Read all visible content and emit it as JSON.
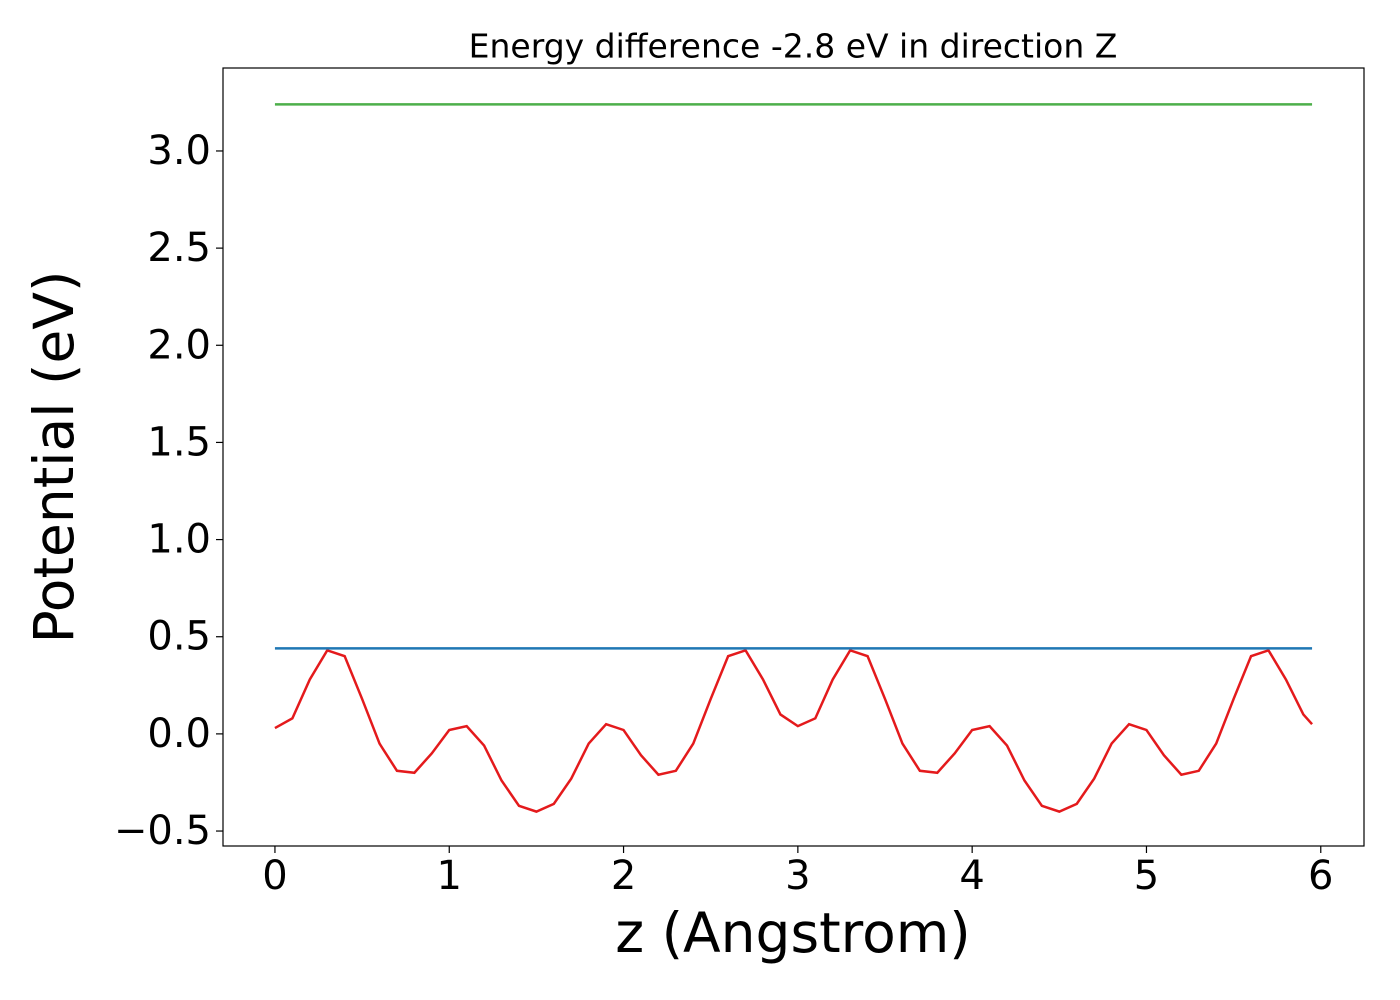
{
  "chart_data": {
    "type": "line",
    "title": "Energy difference -2.8 eV in direction Z",
    "xlabel": "z (Angstrom)",
    "ylabel": "Potential (eV)",
    "series": [
      {
        "color": "#e41a1c",
        "x": [
          0,
          0.1,
          0.2,
          0.3,
          0.4,
          0.5,
          0.6,
          0.7,
          0.8,
          0.9,
          1.0,
          1.1,
          1.2,
          1.3,
          1.4,
          1.5,
          1.6,
          1.7,
          1.8,
          1.9,
          2.0,
          2.1,
          2.2,
          2.3,
          2.4,
          2.5,
          2.6,
          2.7,
          2.8,
          2.9,
          3.0,
          3.1,
          3.2,
          3.3,
          3.4,
          3.5,
          3.6,
          3.7,
          3.8,
          3.9,
          4.0,
          4.1,
          4.2,
          4.3,
          4.4,
          4.5,
          4.6,
          4.7,
          4.8,
          4.9,
          5.0,
          5.1,
          5.2,
          5.3,
          5.4,
          5.5,
          5.6,
          5.7,
          5.8,
          5.9,
          5.95
        ],
        "values": [
          0.03,
          0.08,
          0.28,
          0.43,
          0.4,
          0.18,
          -0.05,
          -0.19,
          -0.2,
          -0.1,
          0.02,
          0.04,
          -0.06,
          -0.24,
          -0.37,
          -0.4,
          -0.36,
          -0.23,
          -0.05,
          0.05,
          0.02,
          -0.11,
          -0.21,
          -0.19,
          -0.05,
          0.18,
          0.4,
          0.43,
          0.28,
          0.1,
          0.04,
          0.08,
          0.28,
          0.43,
          0.4,
          0.18,
          -0.05,
          -0.19,
          -0.2,
          -0.1,
          0.02,
          0.04,
          -0.06,
          -0.24,
          -0.37,
          -0.4,
          -0.36,
          -0.23,
          -0.05,
          0.05,
          0.02,
          -0.11,
          -0.21,
          -0.19,
          -0.05,
          0.18,
          0.4,
          0.43,
          0.28,
          0.1,
          0.05
        ]
      },
      {
        "color": "#1f77b4",
        "x": [
          0,
          5.95
        ],
        "values": [
          0.44,
          0.44
        ]
      },
      {
        "color": "#4daf4a",
        "x": [
          0,
          5.95
        ],
        "values": [
          3.24,
          3.24
        ]
      }
    ],
    "xlim": [
      -0.298,
      6.248
    ],
    "ylim": [
      -0.577,
      3.427
    ],
    "xticks": [
      0,
      1,
      2,
      3,
      4,
      5,
      6
    ],
    "yticks": [
      {
        "value": -0.5,
        "label": "−0.5"
      },
      {
        "value": 0,
        "label": "0.0"
      },
      0.5,
      {
        "value": 1,
        "label": "1.0"
      },
      1.5,
      {
        "value": 2,
        "label": "2.0"
      },
      2.5,
      {
        "value": 3,
        "label": "3.0"
      }
    ],
    "grid": false
  }
}
